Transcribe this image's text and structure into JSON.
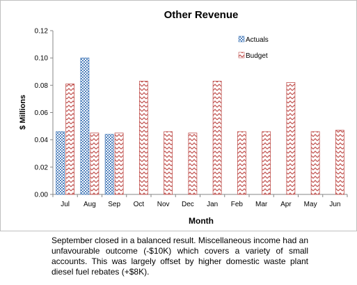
{
  "chart_data": {
    "type": "bar",
    "title": "Other Revenue",
    "xlabel": "Month",
    "ylabel": "$ Millions",
    "ylim": [
      0,
      0.12
    ],
    "yticks": [
      "0.00",
      "0.02",
      "0.04",
      "0.06",
      "0.08",
      "0.10",
      "0.12"
    ],
    "grid": false,
    "legend_position": "top-right inside plot",
    "categories": [
      "Jul",
      "Aug",
      "Sep",
      "Oct",
      "Nov",
      "Dec",
      "Jan",
      "Feb",
      "Mar",
      "Apr",
      "May",
      "Jun"
    ],
    "series": [
      {
        "name": "Actuals",
        "pattern": "checkerboard",
        "color": "#4f81bd",
        "values": [
          0.046,
          0.1,
          0.044,
          null,
          null,
          null,
          null,
          null,
          null,
          null,
          null,
          null
        ]
      },
      {
        "name": "Budget",
        "pattern": "zigzag",
        "color": "#c0504d",
        "values": [
          0.081,
          0.045,
          0.045,
          0.083,
          0.046,
          0.045,
          0.083,
          0.046,
          0.046,
          0.082,
          0.046,
          0.047
        ]
      }
    ]
  },
  "caption": "September closed in a balanced result. Miscellaneous income had an unfavourable outcome (-$10K) which covers a variety of small accounts. This was largely offset by higher domestic waste plant diesel fuel rebates (+$8K)."
}
